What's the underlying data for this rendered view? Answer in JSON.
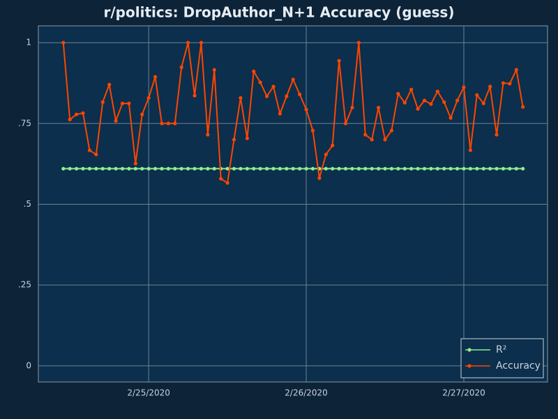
{
  "chart_data": {
    "type": "line",
    "title": "r/politics: DropAuthor_N+1 Accuracy (guess)",
    "x": [
      "2020-02-24 11:00",
      "2020-02-24 12:00",
      "2020-02-24 13:00",
      "2020-02-24 14:00",
      "2020-02-24 15:00",
      "2020-02-24 16:00",
      "2020-02-24 17:00",
      "2020-02-24 18:00",
      "2020-02-24 19:00",
      "2020-02-24 20:00",
      "2020-02-24 21:00",
      "2020-02-24 22:00",
      "2020-02-24 23:00",
      "2020-02-25 00:00",
      "2020-02-25 01:00",
      "2020-02-25 02:00",
      "2020-02-25 03:00",
      "2020-02-25 04:00",
      "2020-02-25 05:00",
      "2020-02-25 06:00",
      "2020-02-25 07:00",
      "2020-02-25 08:00",
      "2020-02-25 09:00",
      "2020-02-25 10:00",
      "2020-02-25 11:00",
      "2020-02-25 12:00",
      "2020-02-25 13:00",
      "2020-02-25 14:00",
      "2020-02-25 15:00",
      "2020-02-25 16:00",
      "2020-02-25 17:00",
      "2020-02-25 18:00",
      "2020-02-25 19:00",
      "2020-02-25 20:00",
      "2020-02-25 21:00",
      "2020-02-25 22:00",
      "2020-02-25 23:00",
      "2020-02-26 00:00",
      "2020-02-26 01:00",
      "2020-02-26 02:00",
      "2020-02-26 03:00",
      "2020-02-26 04:00",
      "2020-02-26 05:00",
      "2020-02-26 06:00",
      "2020-02-26 07:00",
      "2020-02-26 08:00",
      "2020-02-26 09:00",
      "2020-02-26 10:00",
      "2020-02-26 11:00",
      "2020-02-26 12:00",
      "2020-02-26 13:00",
      "2020-02-26 14:00",
      "2020-02-26 15:00",
      "2020-02-26 16:00",
      "2020-02-26 17:00",
      "2020-02-26 18:00",
      "2020-02-26 19:00",
      "2020-02-26 20:00",
      "2020-02-26 21:00",
      "2020-02-26 22:00",
      "2020-02-26 23:00",
      "2020-02-27 00:00",
      "2020-02-27 01:00",
      "2020-02-27 02:00",
      "2020-02-27 03:00",
      "2020-02-27 04:00",
      "2020-02-27 05:00",
      "2020-02-27 06:00",
      "2020-02-27 07:00",
      "2020-02-27 08:00",
      "2020-02-27 09:00"
    ],
    "series": [
      {
        "name": "R²",
        "color": "#90ee90",
        "values": [
          0.61,
          0.61,
          0.61,
          0.61,
          0.61,
          0.61,
          0.61,
          0.61,
          0.61,
          0.61,
          0.61,
          0.61,
          0.61,
          0.61,
          0.61,
          0.61,
          0.61,
          0.61,
          0.61,
          0.61,
          0.61,
          0.61,
          0.61,
          0.61,
          0.61,
          0.61,
          0.61,
          0.61,
          0.61,
          0.61,
          0.61,
          0.61,
          0.61,
          0.61,
          0.61,
          0.61,
          0.61,
          0.61,
          0.61,
          0.61,
          0.61,
          0.61,
          0.61,
          0.61,
          0.61,
          0.61,
          0.61,
          0.61,
          0.61,
          0.61,
          0.61,
          0.61,
          0.61,
          0.61,
          0.61,
          0.61,
          0.61,
          0.61,
          0.61,
          0.61,
          0.61,
          0.61,
          0.61,
          0.61,
          0.61,
          0.61,
          0.61,
          0.61,
          0.61,
          0.61,
          0.61
        ]
      },
      {
        "name": "Accuracy",
        "color": "#ff4500",
        "values": [
          1.0,
          0.762,
          0.778,
          0.782,
          0.667,
          0.654,
          0.816,
          0.87,
          0.758,
          0.812,
          0.812,
          0.626,
          0.778,
          0.829,
          0.894,
          0.75,
          0.75,
          0.75,
          0.924,
          1.0,
          0.836,
          1.0,
          0.715,
          0.916,
          0.579,
          0.566,
          0.7,
          0.829,
          0.704,
          0.911,
          0.877,
          0.834,
          0.864,
          0.78,
          0.834,
          0.886,
          0.84,
          0.793,
          0.728,
          0.581,
          0.654,
          0.682,
          0.944,
          0.75,
          0.799,
          1.0,
          0.715,
          0.7,
          0.799,
          0.7,
          0.728,
          0.842,
          0.814,
          0.855,
          0.795,
          0.821,
          0.81,
          0.849,
          0.816,
          0.767,
          0.821,
          0.862,
          0.667,
          0.838,
          0.812,
          0.864,
          0.715,
          0.875,
          0.873,
          0.916,
          0.801
        ]
      }
    ],
    "xlim": [
      "2020-02-24 07:12",
      "2020-02-27 12:45"
    ],
    "xticks": [
      {
        "value": "2020-02-25 00:00",
        "label": "2/25/2020"
      },
      {
        "value": "2020-02-26 00:00",
        "label": "2/26/2020"
      },
      {
        "value": "2020-02-27 00:00",
        "label": "2/27/2020"
      }
    ],
    "ylim": [
      -0.05,
      1.052
    ],
    "yticks": [
      0,
      {
        "value": 0.25,
        "label": ".25"
      },
      {
        "value": 0.5,
        "label": ".5"
      },
      {
        "value": 0.75,
        "label": ".75"
      },
      1
    ],
    "grid": true,
    "legend": "bottom-right"
  }
}
